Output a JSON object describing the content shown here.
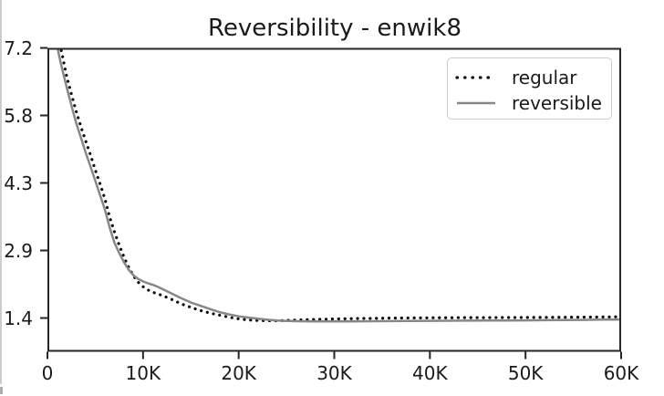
{
  "figure": {
    "background": "#ffffff",
    "edge_artifact_color": "#cccccc"
  },
  "chart_data": {
    "type": "line",
    "title": "Reversibility - enwik8",
    "xlabel": "",
    "ylabel": "",
    "xlim": [
      0,
      60000
    ],
    "ylim": [
      0.72,
      7.2
    ],
    "grid": false,
    "axis_color": "#262626",
    "tick_label_color": "#1a1a1a",
    "legend": {
      "position": "upper right",
      "entries": [
        "regular",
        "reversible"
      ]
    },
    "x_ticks": {
      "values": [
        0,
        10000,
        20000,
        30000,
        40000,
        50000,
        60000
      ],
      "labels": [
        "0",
        "10K",
        "20K",
        "30K",
        "40K",
        "50K",
        "60K"
      ]
    },
    "y_ticks": {
      "values": [
        1.44,
        2.88,
        4.32,
        5.76,
        7.2
      ],
      "labels": [
        "1.4",
        "2.9",
        "4.3",
        "5.8",
        "7.2"
      ]
    },
    "x": [
      250,
      500,
      750,
      1000,
      1250,
      1500,
      2000,
      2500,
      3000,
      3500,
      4000,
      4500,
      5000,
      5500,
      6000,
      6500,
      7000,
      7500,
      8000,
      8500,
      9000,
      9500,
      10000,
      10500,
      11000,
      11500,
      12000,
      13000,
      14000,
      15000,
      16000,
      17000,
      18000,
      19000,
      20000,
      21000,
      22000,
      23000,
      24000,
      25000,
      26000,
      28000,
      30000,
      32000,
      34000,
      36000,
      38000,
      40000,
      42000,
      44000,
      46000,
      48000,
      50000,
      52000,
      54000,
      56000,
      58000,
      59000,
      60000
    ],
    "series": [
      {
        "name": "regular",
        "style": "dotted",
        "color": "#0d0d0d",
        "values": [
          8.6,
          8.2,
          7.85,
          7.55,
          7.3,
          7.1,
          6.6,
          6.22,
          5.85,
          5.52,
          5.22,
          4.92,
          4.6,
          4.3,
          3.99,
          3.6,
          3.28,
          3.0,
          2.74,
          2.52,
          2.34,
          2.2,
          2.11,
          2.04,
          1.99,
          1.955,
          1.92,
          1.835,
          1.74,
          1.665,
          1.6,
          1.545,
          1.5,
          1.455,
          1.42,
          1.4,
          1.388,
          1.382,
          1.382,
          1.388,
          1.395,
          1.408,
          1.418,
          1.426,
          1.433,
          1.438,
          1.441,
          1.443,
          1.445,
          1.447,
          1.448,
          1.45,
          1.451,
          1.453,
          1.455,
          1.458,
          1.462,
          1.464,
          1.468
        ]
      },
      {
        "name": "reversible",
        "style": "solid",
        "color": "#878787",
        "values": [
          8.2,
          7.85,
          7.52,
          7.26,
          7.01,
          6.79,
          6.37,
          5.98,
          5.6,
          5.29,
          4.97,
          4.67,
          4.37,
          4.06,
          3.76,
          3.38,
          3.05,
          2.83,
          2.63,
          2.47,
          2.35,
          2.27,
          2.22,
          2.18,
          2.15,
          2.11,
          2.06,
          1.96,
          1.86,
          1.77,
          1.7,
          1.63,
          1.565,
          1.515,
          1.475,
          1.45,
          1.425,
          1.403,
          1.388,
          1.378,
          1.372,
          1.367,
          1.366,
          1.368,
          1.371,
          1.374,
          1.377,
          1.38,
          1.382,
          1.384,
          1.386,
          1.388,
          1.39,
          1.393,
          1.396,
          1.4,
          1.404,
          1.405,
          1.408
        ]
      }
    ]
  }
}
